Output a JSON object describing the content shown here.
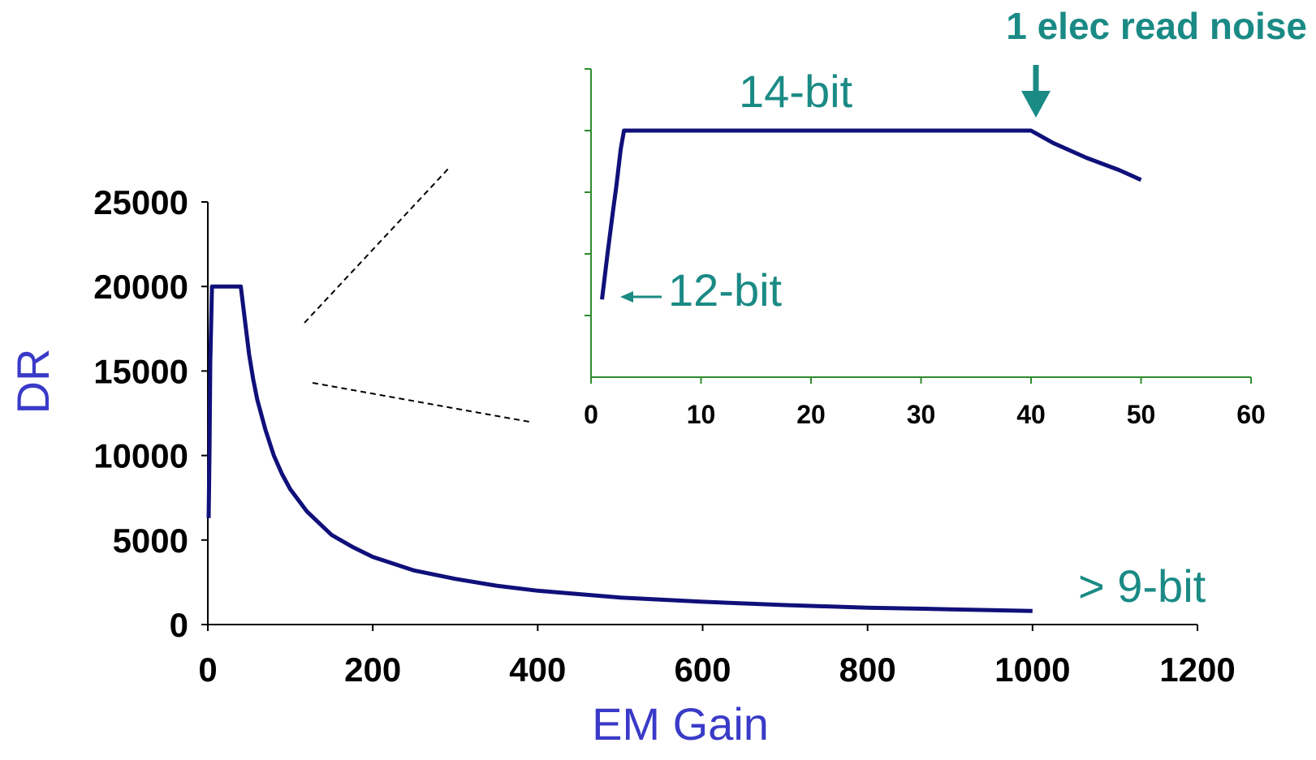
{
  "colors": {
    "curve": "#10107a",
    "main_axis": "#000000",
    "inset_axis": "#2e8b2e",
    "annotation": "#1a8a85",
    "axis_title": "#3a3ac8",
    "zoom_lines": "#000000"
  },
  "chart_data": [
    {
      "id": "main",
      "type": "line",
      "title": "",
      "xlabel": "EM Gain",
      "ylabel": "DR",
      "xlim": [
        0,
        1200
      ],
      "ylim": [
        0,
        25000
      ],
      "x_ticks": [
        0,
        200,
        400,
        600,
        800,
        1000,
        1200
      ],
      "y_ticks": [
        0,
        5000,
        10000,
        15000,
        20000,
        25000
      ],
      "x_tick_labels": [
        "0",
        "200",
        "400",
        "600",
        "800",
        "1000",
        "1200"
      ],
      "y_tick_labels": [
        "0",
        "5000",
        "10000",
        "15000",
        "20000",
        "25000"
      ],
      "grid": false,
      "series": [
        {
          "x": [
            1,
            2,
            3,
            5,
            10,
            20,
            30,
            40,
            45,
            50,
            55,
            60,
            70,
            80,
            90,
            100,
            120,
            150,
            175,
            200,
            250,
            300,
            350,
            400,
            450,
            500,
            600,
            700,
            800,
            900,
            1000
          ],
          "y": [
            6300,
            10000,
            15500,
            20000,
            20000,
            20000,
            20000,
            20000,
            18000,
            16000,
            14500,
            13300,
            11500,
            10000,
            8900,
            8000,
            6700,
            5300,
            4600,
            4000,
            3200,
            2700,
            2300,
            2000,
            1800,
            1600,
            1350,
            1150,
            1000,
            900,
            800
          ]
        }
      ],
      "annotations": [
        {
          "text": "> 9-bit",
          "x": 1060,
          "y": 2000
        }
      ]
    },
    {
      "id": "inset",
      "type": "line",
      "title": "",
      "xlabel": "",
      "ylabel": "",
      "xlim": [
        0,
        60
      ],
      "ylim": [
        0,
        25000
      ],
      "x_ticks": [
        0,
        10,
        20,
        30,
        40,
        50,
        60
      ],
      "x_tick_labels": [
        "0",
        "10",
        "20",
        "30",
        "40",
        "50",
        "60"
      ],
      "y_ticks": [
        5000,
        10000,
        15000,
        20000,
        25000
      ],
      "grid": false,
      "series": [
        {
          "x": [
            1,
            1.5,
            2,
            2.3,
            2.7,
            3,
            3.3,
            5,
            10,
            20,
            30,
            40,
            42,
            45,
            48,
            50
          ],
          "y": [
            6300,
            10000,
            13500,
            15500,
            18500,
            20000,
            20000,
            20000,
            20000,
            20000,
            20000,
            20000,
            19000,
            17800,
            16800,
            16000
          ]
        }
      ],
      "annotations": [
        {
          "text": "14-bit",
          "x": 19,
          "y": 24500
        },
        {
          "text": "12-bit",
          "x": 7,
          "y": 7000
        },
        {
          "text": "1 elec read noise",
          "x": 40,
          "y": 20000
        }
      ]
    }
  ]
}
